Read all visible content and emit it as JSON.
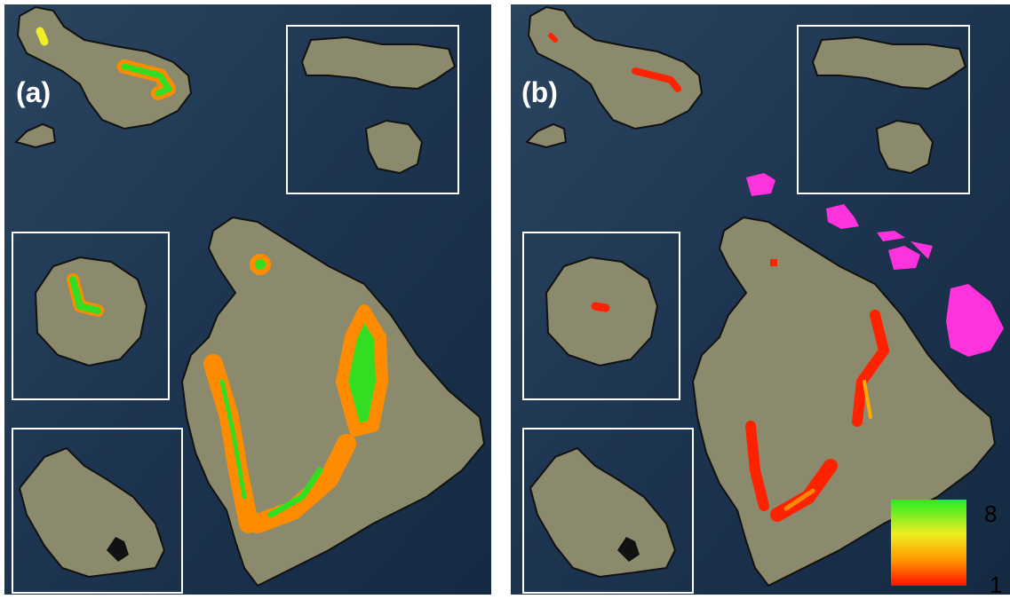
{
  "panels": [
    {
      "label": "(a)"
    },
    {
      "label": "(b)"
    }
  ],
  "legend": {
    "max": "8",
    "min": "1"
  }
}
